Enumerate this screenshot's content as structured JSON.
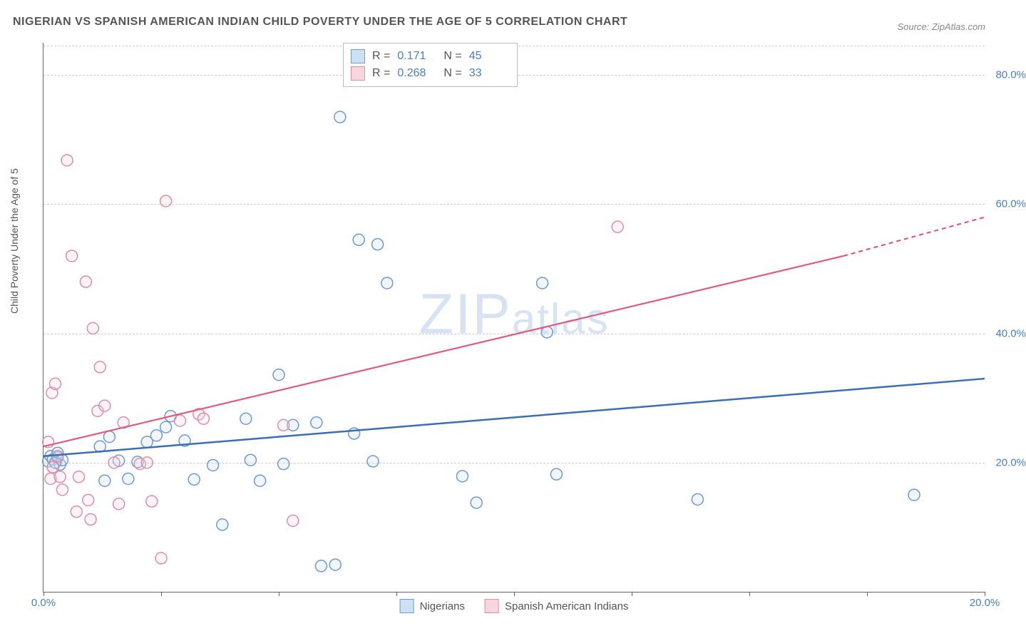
{
  "title": "NIGERIAN VS SPANISH AMERICAN INDIAN CHILD POVERTY UNDER THE AGE OF 5 CORRELATION CHART",
  "source": "Source: ZipAtlas.com",
  "ylabel": "Child Poverty Under the Age of 5",
  "watermark": {
    "zip": "ZIP",
    "atlas": "atlas"
  },
  "chart": {
    "type": "scatter",
    "background_color": "#ffffff",
    "grid_color": "#cccccc",
    "axis_color": "#666666",
    "label_color": "#555555",
    "tick_color": "#4a7ec9",
    "xlim": [
      0,
      20
    ],
    "ylim": [
      0,
      85
    ],
    "y_ticks": [
      20,
      40,
      60,
      80
    ],
    "y_tick_labels": [
      "20.0%",
      "40.0%",
      "60.0%",
      "80.0%"
    ],
    "x_ticks": [
      0,
      2.5,
      5,
      7.5,
      10,
      12.5,
      15,
      17.5,
      20
    ],
    "x_tick_labels": [
      "0.0%",
      "",
      "",
      "",
      "",
      "",
      "",
      "",
      "20.0%"
    ],
    "marker_radius": 8,
    "marker_stroke_width": 1.5,
    "marker_fill_opacity": 0.28,
    "stats": [
      {
        "swatch_fill": "#cfe0f3",
        "swatch_border": "#6a9bd8",
        "r_label": "R =",
        "r_val": "0.171",
        "n_label": "N =",
        "n_val": "45"
      },
      {
        "swatch_fill": "#f6d7df",
        "swatch_border": "#e28da4",
        "r_label": "R =",
        "r_val": "0.268",
        "n_label": "N =",
        "n_val": "33"
      }
    ],
    "legend": [
      {
        "swatch_fill": "#cfe0f3",
        "swatch_border": "#6a9bd8",
        "label": "Nigerians"
      },
      {
        "swatch_fill": "#f6d7df",
        "swatch_border": "#e28da4",
        "label": "Spanish American Indians"
      }
    ],
    "series": [
      {
        "name": "Nigerians",
        "color": "#6a9bd8",
        "fill": "#cfe0f3",
        "regression": {
          "x1": 0,
          "y1": 21,
          "x2": 20,
          "y2": 33,
          "color": "#3b6fb5",
          "width": 2.5
        },
        "points": [
          [
            0.1,
            20.2
          ],
          [
            0.15,
            21
          ],
          [
            0.2,
            20.5
          ],
          [
            0.2,
            19.3
          ],
          [
            0.3,
            20.8
          ],
          [
            0.3,
            21.5
          ],
          [
            0.35,
            19.7
          ],
          [
            0.4,
            20.4
          ],
          [
            1.2,
            22.5
          ],
          [
            1.3,
            17.2
          ],
          [
            1.4,
            24
          ],
          [
            1.6,
            20.3
          ],
          [
            1.8,
            17.5
          ],
          [
            2.0,
            20.1
          ],
          [
            2.2,
            23.2
          ],
          [
            2.4,
            24.2
          ],
          [
            2.6,
            25.5
          ],
          [
            2.7,
            27.2
          ],
          [
            3.0,
            23.4
          ],
          [
            3.2,
            17.4
          ],
          [
            3.6,
            19.6
          ],
          [
            3.8,
            10.4
          ],
          [
            4.3,
            26.8
          ],
          [
            4.4,
            20.4
          ],
          [
            4.6,
            17.2
          ],
          [
            5.0,
            33.6
          ],
          [
            5.1,
            19.8
          ],
          [
            5.3,
            25.8
          ],
          [
            5.8,
            26.2
          ],
          [
            5.9,
            4.0
          ],
          [
            6.2,
            4.2
          ],
          [
            6.3,
            73.5
          ],
          [
            6.6,
            24.5
          ],
          [
            6.7,
            54.5
          ],
          [
            7.0,
            20.2
          ],
          [
            7.1,
            53.8
          ],
          [
            7.3,
            47.8
          ],
          [
            8.9,
            17.9
          ],
          [
            9.2,
            13.8
          ],
          [
            10.6,
            47.8
          ],
          [
            10.7,
            40.2
          ],
          [
            10.9,
            18.2
          ],
          [
            13.9,
            14.3
          ],
          [
            18.5,
            15.0
          ],
          [
            0.25,
            20.0
          ]
        ]
      },
      {
        "name": "Spanish American Indians",
        "color": "#e28da4",
        "fill": "#f6d7df",
        "regression": {
          "x1": 0,
          "y1": 22.5,
          "x2": 17,
          "y2": 52,
          "color": "#e05a7d",
          "width": 2.2,
          "dash_from_x": 17,
          "dash_to_x": 20,
          "dash_y": 58
        },
        "points": [
          [
            0.1,
            23.2
          ],
          [
            0.15,
            17.5
          ],
          [
            0.18,
            30.8
          ],
          [
            0.2,
            19.3
          ],
          [
            0.25,
            32.2
          ],
          [
            0.3,
            21.0
          ],
          [
            0.35,
            17.8
          ],
          [
            0.4,
            15.8
          ],
          [
            0.5,
            66.8
          ],
          [
            0.6,
            52.0
          ],
          [
            0.7,
            12.4
          ],
          [
            0.75,
            17.8
          ],
          [
            0.9,
            48.0
          ],
          [
            0.95,
            14.2
          ],
          [
            1.05,
            40.8
          ],
          [
            1.15,
            28.0
          ],
          [
            1.2,
            34.8
          ],
          [
            1.3,
            28.8
          ],
          [
            1.5,
            20.0
          ],
          [
            1.6,
            13.6
          ],
          [
            1.7,
            26.2
          ],
          [
            2.05,
            19.8
          ],
          [
            2.2,
            20.0
          ],
          [
            2.3,
            14.0
          ],
          [
            2.5,
            5.2
          ],
          [
            2.6,
            60.5
          ],
          [
            2.9,
            26.5
          ],
          [
            3.3,
            27.5
          ],
          [
            3.4,
            26.8
          ],
          [
            5.1,
            25.8
          ],
          [
            5.3,
            11.0
          ],
          [
            12.2,
            56.5
          ],
          [
            1.0,
            11.2
          ]
        ]
      }
    ]
  }
}
